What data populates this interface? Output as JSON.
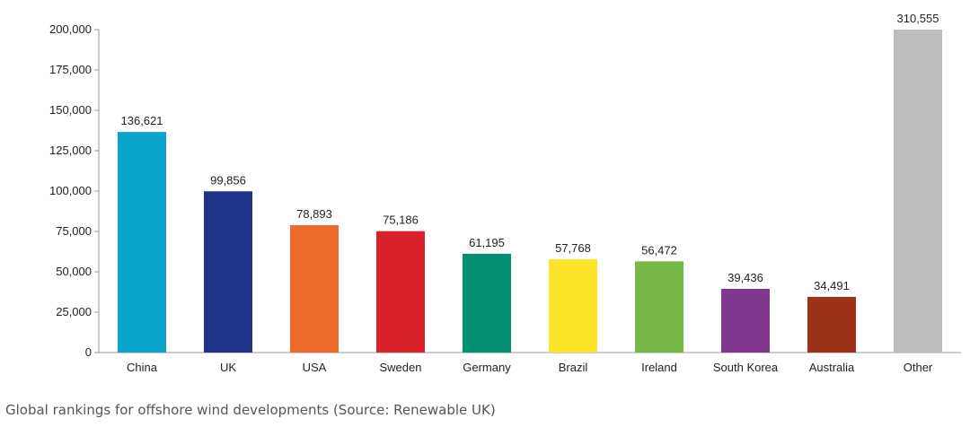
{
  "chart_data": {
    "type": "bar",
    "categories": [
      "China",
      "UK",
      "USA",
      "Sweden",
      "Germany",
      "Brazil",
      "Ireland",
      "South Korea",
      "Australia",
      "Other"
    ],
    "values": [
      136621,
      99856,
      78893,
      75186,
      61195,
      57768,
      56472,
      39436,
      34491,
      310555
    ],
    "value_labels": [
      "136,621",
      "99,856",
      "78,893",
      "75,186",
      "61,195",
      "57,768",
      "56,472",
      "39,436",
      "34,491",
      "310,555"
    ],
    "colors": [
      "#0aa3c9",
      "#22348a",
      "#ec6a2a",
      "#d82128",
      "#049072",
      "#fbe42a",
      "#78b848",
      "#7f3790",
      "#9e3218",
      "#bdbdbd"
    ],
    "yticks": [
      "0",
      "25,000",
      "50,000",
      "75,000",
      "100,000",
      "125,000",
      "150,000",
      "175,000",
      "200,000"
    ],
    "ylim": [
      0,
      200000
    ],
    "clipped_bars": [
      "Other"
    ],
    "grid": false,
    "title": "",
    "xlabel": "",
    "ylabel": ""
  },
  "caption": "Global rankings for offshore wind developments (Source: Renewable UK)"
}
